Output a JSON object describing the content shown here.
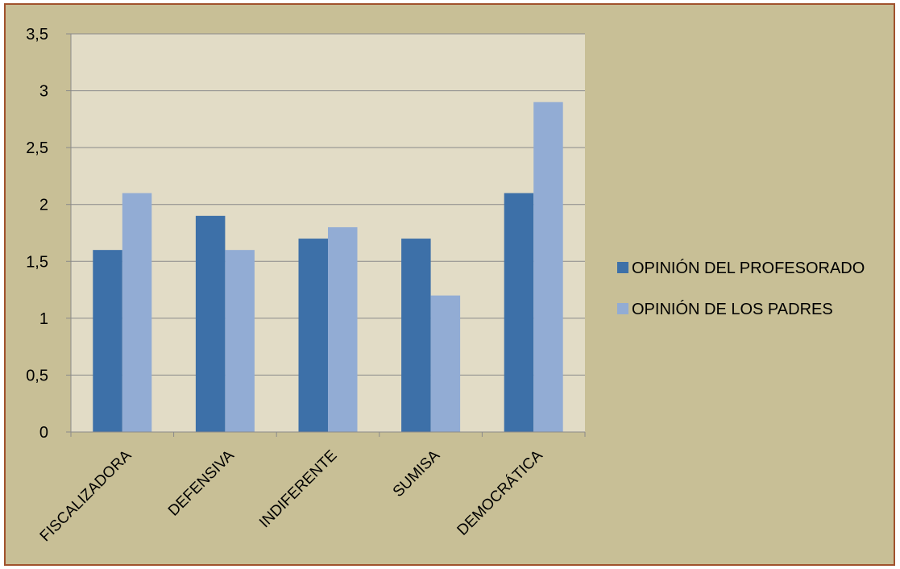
{
  "chart_data": {
    "type": "bar",
    "categories": [
      "FISCALIZADORA",
      "DEFENSIVA",
      "INDIFERENTE",
      "SUMISA",
      "DEMOCRÁTICA"
    ],
    "series": [
      {
        "name": "OPINIÓN DEL PROFESORADO",
        "values": [
          1.6,
          1.9,
          1.7,
          1.7,
          2.1
        ],
        "color": "#3d70a8"
      },
      {
        "name": "OPINIÓN DE LOS PADRES",
        "values": [
          2.1,
          1.6,
          1.8,
          1.2,
          2.9
        ],
        "color": "#92acd4"
      }
    ],
    "title": "",
    "xlabel": "",
    "ylabel": "",
    "ylim": [
      0,
      3.5
    ],
    "yticks": [
      "0",
      "0,5",
      "1",
      "1,5",
      "2",
      "2,5",
      "3",
      "3,5"
    ],
    "grid": true,
    "legend_position": "right",
    "colors": {
      "frame_background": "#c8bf96",
      "frame_border": "#a0522d",
      "plot_background": "#e2dcc6",
      "gridline": "#8a8a8a"
    }
  }
}
